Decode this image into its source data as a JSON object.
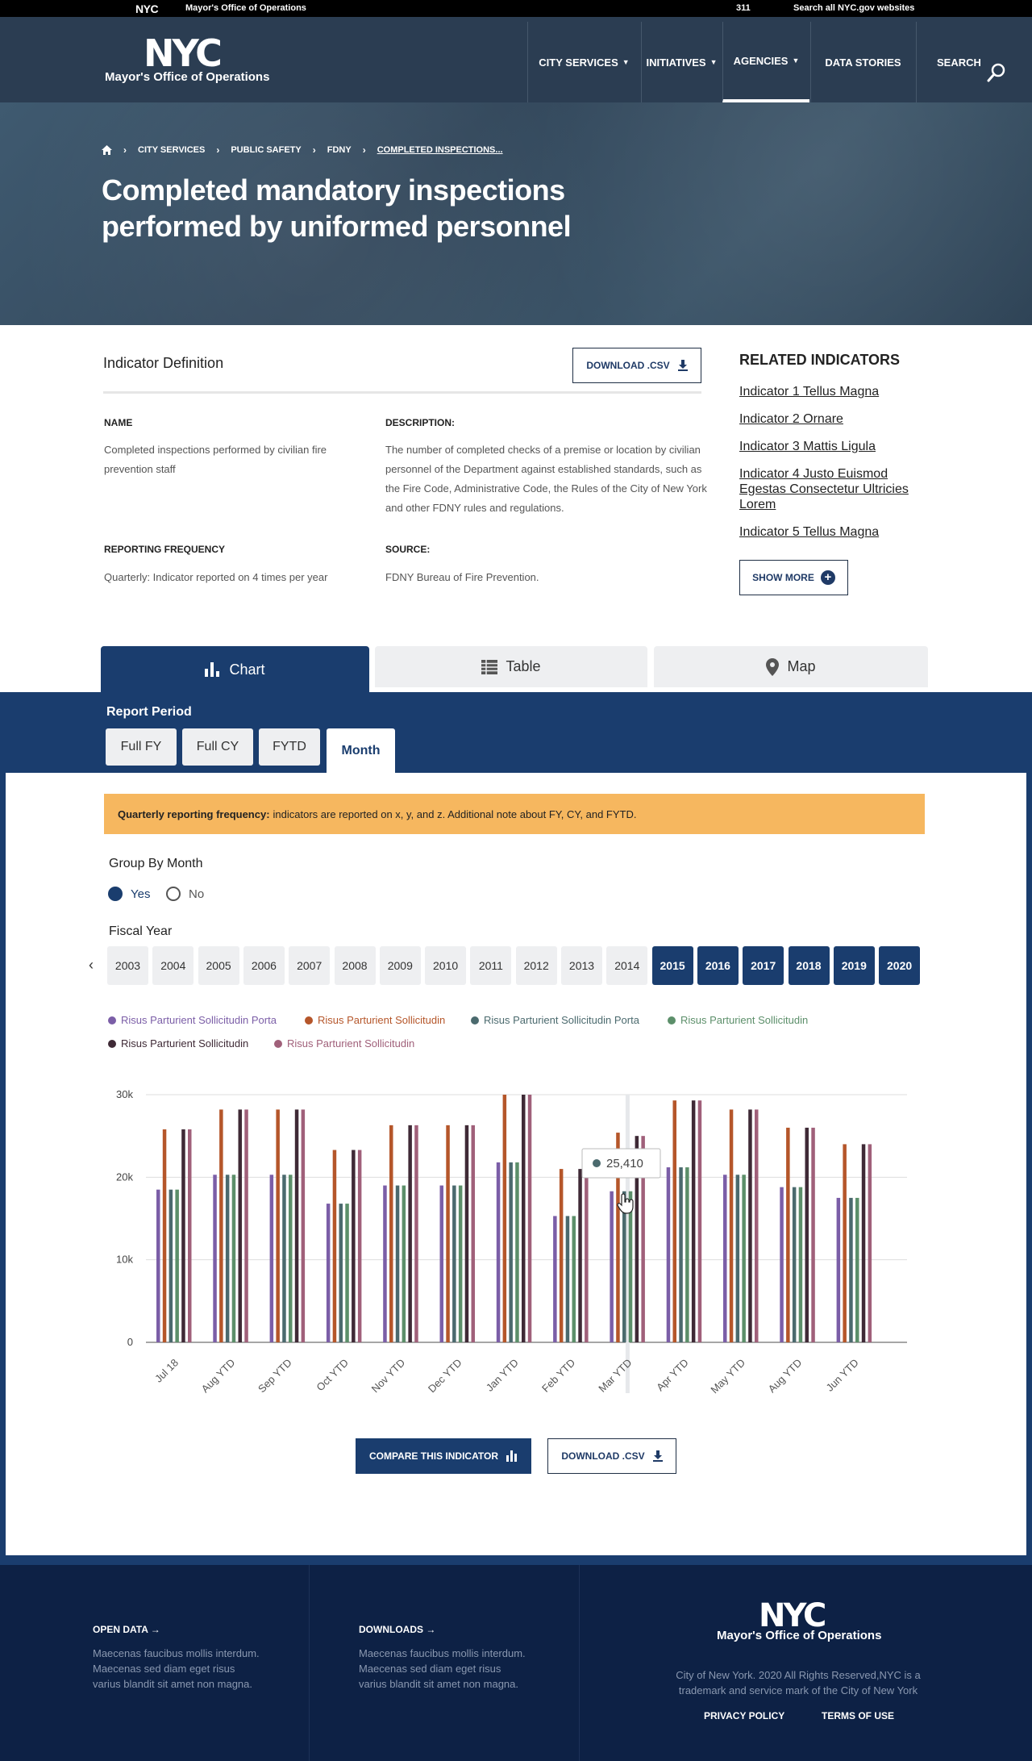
{
  "topbar": {
    "nyc": "NYC",
    "office": "Mayor's Office of Operations",
    "t311": "311",
    "search_all": "Search all NYC.gov websites"
  },
  "header": {
    "logo": "NYC",
    "logo_sub": "Mayor's Office of Operations",
    "nav": [
      {
        "label": "CITY SERVICES",
        "caret": "▼"
      },
      {
        "label": "INITIATIVES",
        "caret": "▼"
      },
      {
        "label": "AGENCIES",
        "caret": "▼"
      },
      {
        "label": "DATA STORIES"
      },
      {
        "label": "SEARCH"
      }
    ]
  },
  "hero": {
    "breadcrumb": [
      "CITY SERVICES",
      "PUBLIC SAFETY",
      "FDNY",
      "COMPLETED INSPECTIONS..."
    ],
    "title": "Completed mandatory inspections performed by uniformed personnel"
  },
  "definition": {
    "title": "Indicator Definition",
    "download_label": "DOWNLOAD .CSV",
    "name_label": "NAME",
    "name_value": "Completed inspections performed by civilian fire prevention staff",
    "desc_label": "DESCRIPTION:",
    "desc_value": "The number of completed checks of a premise or location by civilian personnel of the Department against established standards, such as the Fire Code, Administrative Code, the Rules of the City of New York and other FDNY rules and regulations.",
    "freq_label": "REPORTING FREQUENCY",
    "freq_value": "Quarterly: Indicator reported on 4 times per year",
    "source_label": "SOURCE:",
    "source_value": "FDNY Bureau of Fire Prevention."
  },
  "related": {
    "title": "RELATED INDICATORS",
    "links": [
      "Indicator 1 Tellus Magna",
      "Indicator 2 Ornare",
      "Indicator 3 Mattis Ligula",
      "Indicator 4 Justo Euismod Egestas Consectetur Ultricies Lorem",
      "Indicator 5 Tellus Magna"
    ],
    "show_more": "SHOW MORE"
  },
  "view_tabs": [
    {
      "label": "Chart",
      "icon": "bar-chart-icon"
    },
    {
      "label": "Table",
      "icon": "table-icon"
    },
    {
      "label": "Map",
      "icon": "map-pin-icon"
    }
  ],
  "report_period": {
    "label": "Report Period",
    "tabs": [
      "Full FY",
      "Full CY",
      "FYTD",
      "Month"
    ],
    "active": "Month"
  },
  "notice": {
    "bold": "Quarterly reporting frequency:",
    "text": "indicators are reported on x, y, and z. Additional note about FY, CY, and FYTD."
  },
  "group_by": {
    "label": "Group By Month",
    "yes": "Yes",
    "no": "No",
    "selected": "Yes"
  },
  "fiscal_year": {
    "label": "Fiscal Year",
    "years": [
      "2003",
      "2004",
      "2005",
      "2006",
      "2007",
      "2008",
      "2009",
      "2010",
      "2011",
      "2012",
      "2013",
      "2014",
      "2015",
      "2016",
      "2017",
      "2018",
      "2019",
      "2020"
    ],
    "selected": [
      "2015",
      "2016",
      "2017",
      "2018",
      "2019",
      "2020"
    ]
  },
  "chart_data": {
    "type": "bar",
    "categories": [
      "Jul 18",
      "Aug YTD",
      "Sep YTD",
      "Oct YTD",
      "Nov YTD",
      "Dec YTD",
      "Jan YTD",
      "Feb YTD",
      "Mar YTD",
      "Apr YTD",
      "May YTD",
      "Aug YTD",
      "Jun YTD"
    ],
    "series": [
      {
        "name": "Risus Parturient Sollicitudin Porta",
        "color": "#7b5ea7",
        "values": [
          18500,
          20300,
          20300,
          16800,
          19000,
          19000,
          21800,
          15300,
          18300,
          21200,
          20300,
          18800,
          17500
        ]
      },
      {
        "name": "Risus Parturient Sollicitudin",
        "color": "#b5562a",
        "values": [
          25800,
          28200,
          28200,
          23300,
          26300,
          26300,
          30000,
          21000,
          25400,
          29300,
          28200,
          26000,
          24000
        ]
      },
      {
        "name": "Risus Parturient Sollicitudin Porta",
        "color": "#4b6a6e",
        "values": [
          18500,
          20300,
          20300,
          16800,
          19000,
          19000,
          21800,
          15300,
          18300,
          21200,
          20300,
          18800,
          17500
        ]
      },
      {
        "name": "Risus Parturient Sollicitudin",
        "color": "#5c8f6a",
        "values": [
          18500,
          20300,
          20300,
          16800,
          19000,
          19000,
          21800,
          15300,
          18300,
          21200,
          20300,
          18800,
          17500
        ]
      },
      {
        "name": "Risus Parturient Sollicitudin",
        "color": "#3f2a36",
        "values": [
          25800,
          28200,
          28200,
          23300,
          26300,
          26300,
          30000,
          21000,
          25000,
          29300,
          28200,
          26000,
          24000
        ]
      },
      {
        "name": "Risus Parturient Sollicitudin",
        "color": "#a0607a",
        "values": [
          25800,
          28200,
          28200,
          23300,
          26300,
          26300,
          30000,
          21000,
          25000,
          29300,
          28200,
          26000,
          24000
        ]
      }
    ],
    "ylim": [
      0,
      30000
    ],
    "yticks": [
      {
        "v": 0,
        "label": "0"
      },
      {
        "v": 10000,
        "label": "10k"
      },
      {
        "v": 20000,
        "label": "20k"
      },
      {
        "v": 30000,
        "label": "30k"
      }
    ],
    "grid": true,
    "legend": "top-left",
    "tooltip": {
      "category": "Mar YTD",
      "value": "25,410"
    }
  },
  "actions": {
    "compare": "COMPARE THIS INDICATOR",
    "download": "DOWNLOAD .CSV"
  },
  "footer": {
    "open_data": "OPEN DATA →",
    "open_data_text": "Maecenas faucibus mollis interdum. Maecenas sed diam eget risus varius blandit sit amet non magna.",
    "downloads": "DOWNLOADS →",
    "downloads_text": "Maecenas faucibus mollis interdum. Maecenas sed diam eget risus varius blandit sit amet non magna.",
    "logo": "NYC",
    "logo_sub": "Mayor's Office of Operations",
    "copyright": "City of New York. 2020 All Rights Reserved,NYC is a trademark and service mark of the City of New York",
    "privacy": "PRIVACY POLICY",
    "terms": "TERMS OF USE"
  }
}
